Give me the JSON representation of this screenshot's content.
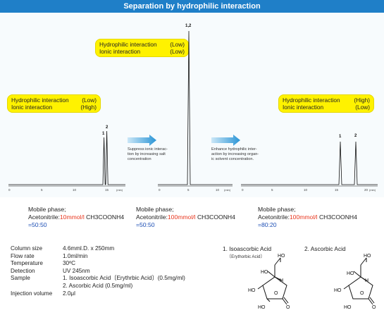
{
  "header": {
    "title": "Separation by hydrophilic interaction"
  },
  "callouts": {
    "left": {
      "r1_label": "Hydrophilic interaction",
      "r1_value": "(Low)",
      "r2_label": "Ionic interaction",
      "r2_value": "(High)"
    },
    "middle": {
      "r1_label": "Hydrophilic interaction",
      "r1_value": "(Low)",
      "r2_label": "Ionic interaction",
      "r2_value": "(Low)"
    },
    "right": {
      "r1_label": "Hydrophilic interaction",
      "r1_value": "(High)",
      "r2_label": "Ionic interaction",
      "r2_value": "(Low)"
    }
  },
  "arrows": {
    "a1": {
      "l1": "Suppress ionic interac-",
      "l2": "tion by increasing salt",
      "l3": "concentration"
    },
    "a2": {
      "l1": "Enhance hydrophilic inter-",
      "l2": "action by increasing organ-",
      "l3": "ic solvent concentration."
    }
  },
  "chromatograms": {
    "c1": {
      "peak_labels": [
        "1",
        "2"
      ],
      "ticks": [
        "0",
        "5",
        "10",
        "15"
      ],
      "unit": "(min)"
    },
    "c2": {
      "peak_labels": [
        "1,2"
      ],
      "ticks": [
        "0",
        "5",
        "10"
      ],
      "unit": "(min)"
    },
    "c3": {
      "peak_labels": [
        "1",
        "2"
      ],
      "ticks": [
        "0",
        "5",
        "10",
        "15",
        "20"
      ],
      "unit": "(min)"
    }
  },
  "mobile_phase": {
    "label": "Mobile phase;",
    "prefix": "Acetonitrile:",
    "suffix": " CH3COONH4",
    "m1": {
      "salt": "10mmol/l",
      "ratio": "=50:50"
    },
    "m2": {
      "salt": "100mmol/l",
      "ratio": "=50:50"
    },
    "m3": {
      "salt": "100mmol/l",
      "ratio": "=80:20"
    }
  },
  "conditions": {
    "column_size": {
      "label": "Column size",
      "value": "4.6mml.D. x 250mm"
    },
    "flow_rate": {
      "label": "Flow rate",
      "value": "1.0ml/min"
    },
    "temperature": {
      "label": "Temperature",
      "value": "30ºC"
    },
    "detection": {
      "label": "Detection",
      "value": "UV 245nm"
    },
    "sample": {
      "label": "Sample",
      "value1": "1. Isoascorbic Acid〔Erythrbic Acid〕(0.5mg/ml)",
      "value2": "2. Ascorbic Acid (0.5mg/ml)"
    },
    "injection": {
      "label": "Injection volume",
      "value": "2.0μl"
    }
  },
  "compounds": {
    "c1": {
      "name": "1. Isoascorbic Acid",
      "sub": "〔Erythorbic Acid〕"
    },
    "c2": {
      "name": "2. Ascorbic Acid"
    },
    "atoms": {
      "ho": "HO",
      "h": "H",
      "o": "O",
      "oh_top": "HO"
    }
  }
}
